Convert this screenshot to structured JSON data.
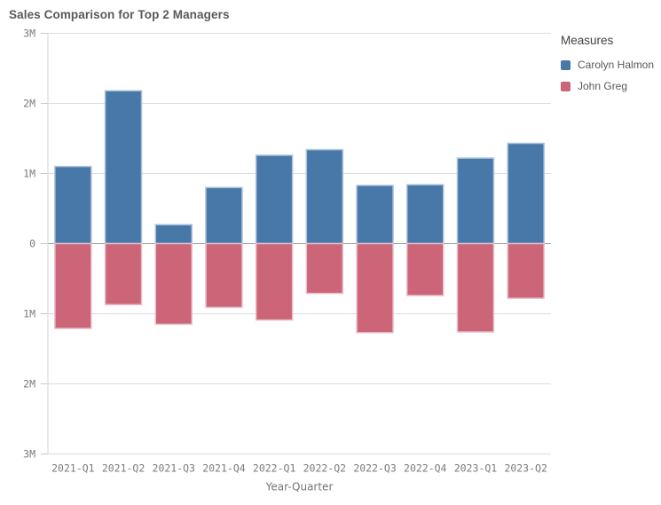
{
  "chart_data": {
    "type": "bar",
    "subtype": "diverging-mirrored",
    "title": "Sales Comparison for Top 2 Managers",
    "xlabel": "Year-Quarter",
    "ylabel": "",
    "categories": [
      "2021-Q1",
      "2021-Q2",
      "2021-Q3",
      "2021-Q4",
      "2022-Q1",
      "2022-Q2",
      "2022-Q3",
      "2022-Q4",
      "2023-Q1",
      "2023-Q2"
    ],
    "series": [
      {
        "name": "Carolyn Halmon",
        "direction": "up",
        "color": "#4878a8",
        "stroke_color": "#aac3dc",
        "values_millions": [
          1.1,
          2.18,
          0.27,
          0.8,
          1.26,
          1.34,
          0.83,
          0.84,
          1.22,
          1.43
        ]
      },
      {
        "name": "John Greg",
        "direction": "down",
        "color": "#cb6577",
        "stroke_color": "#e9c0ca",
        "values_millions": [
          1.21,
          0.87,
          1.15,
          0.91,
          1.09,
          0.71,
          1.27,
          0.74,
          1.26,
          0.78
        ]
      }
    ],
    "y_axis": {
      "tick_labels": [
        "3M",
        "2M",
        "1M",
        "0",
        "1M",
        "2M",
        "3M"
      ],
      "tick_values_millions": [
        3,
        2,
        1,
        0,
        -1,
        -2,
        -3
      ],
      "lim_millions": [
        -3,
        3
      ]
    },
    "legend": {
      "title": "Measures",
      "position": "right"
    },
    "grid": true,
    "style_colors": {
      "gridline": "#dcdcdc",
      "zero_line": "#9b9b9b",
      "axis_line": "#d4d4d4",
      "tick_mark": "#c8c8c8",
      "title_text": "#595959",
      "tick_text": "#7b7b7b",
      "legend_title_text": "#404040",
      "legend_label_text": "#595959",
      "background": "#ffffff"
    }
  }
}
